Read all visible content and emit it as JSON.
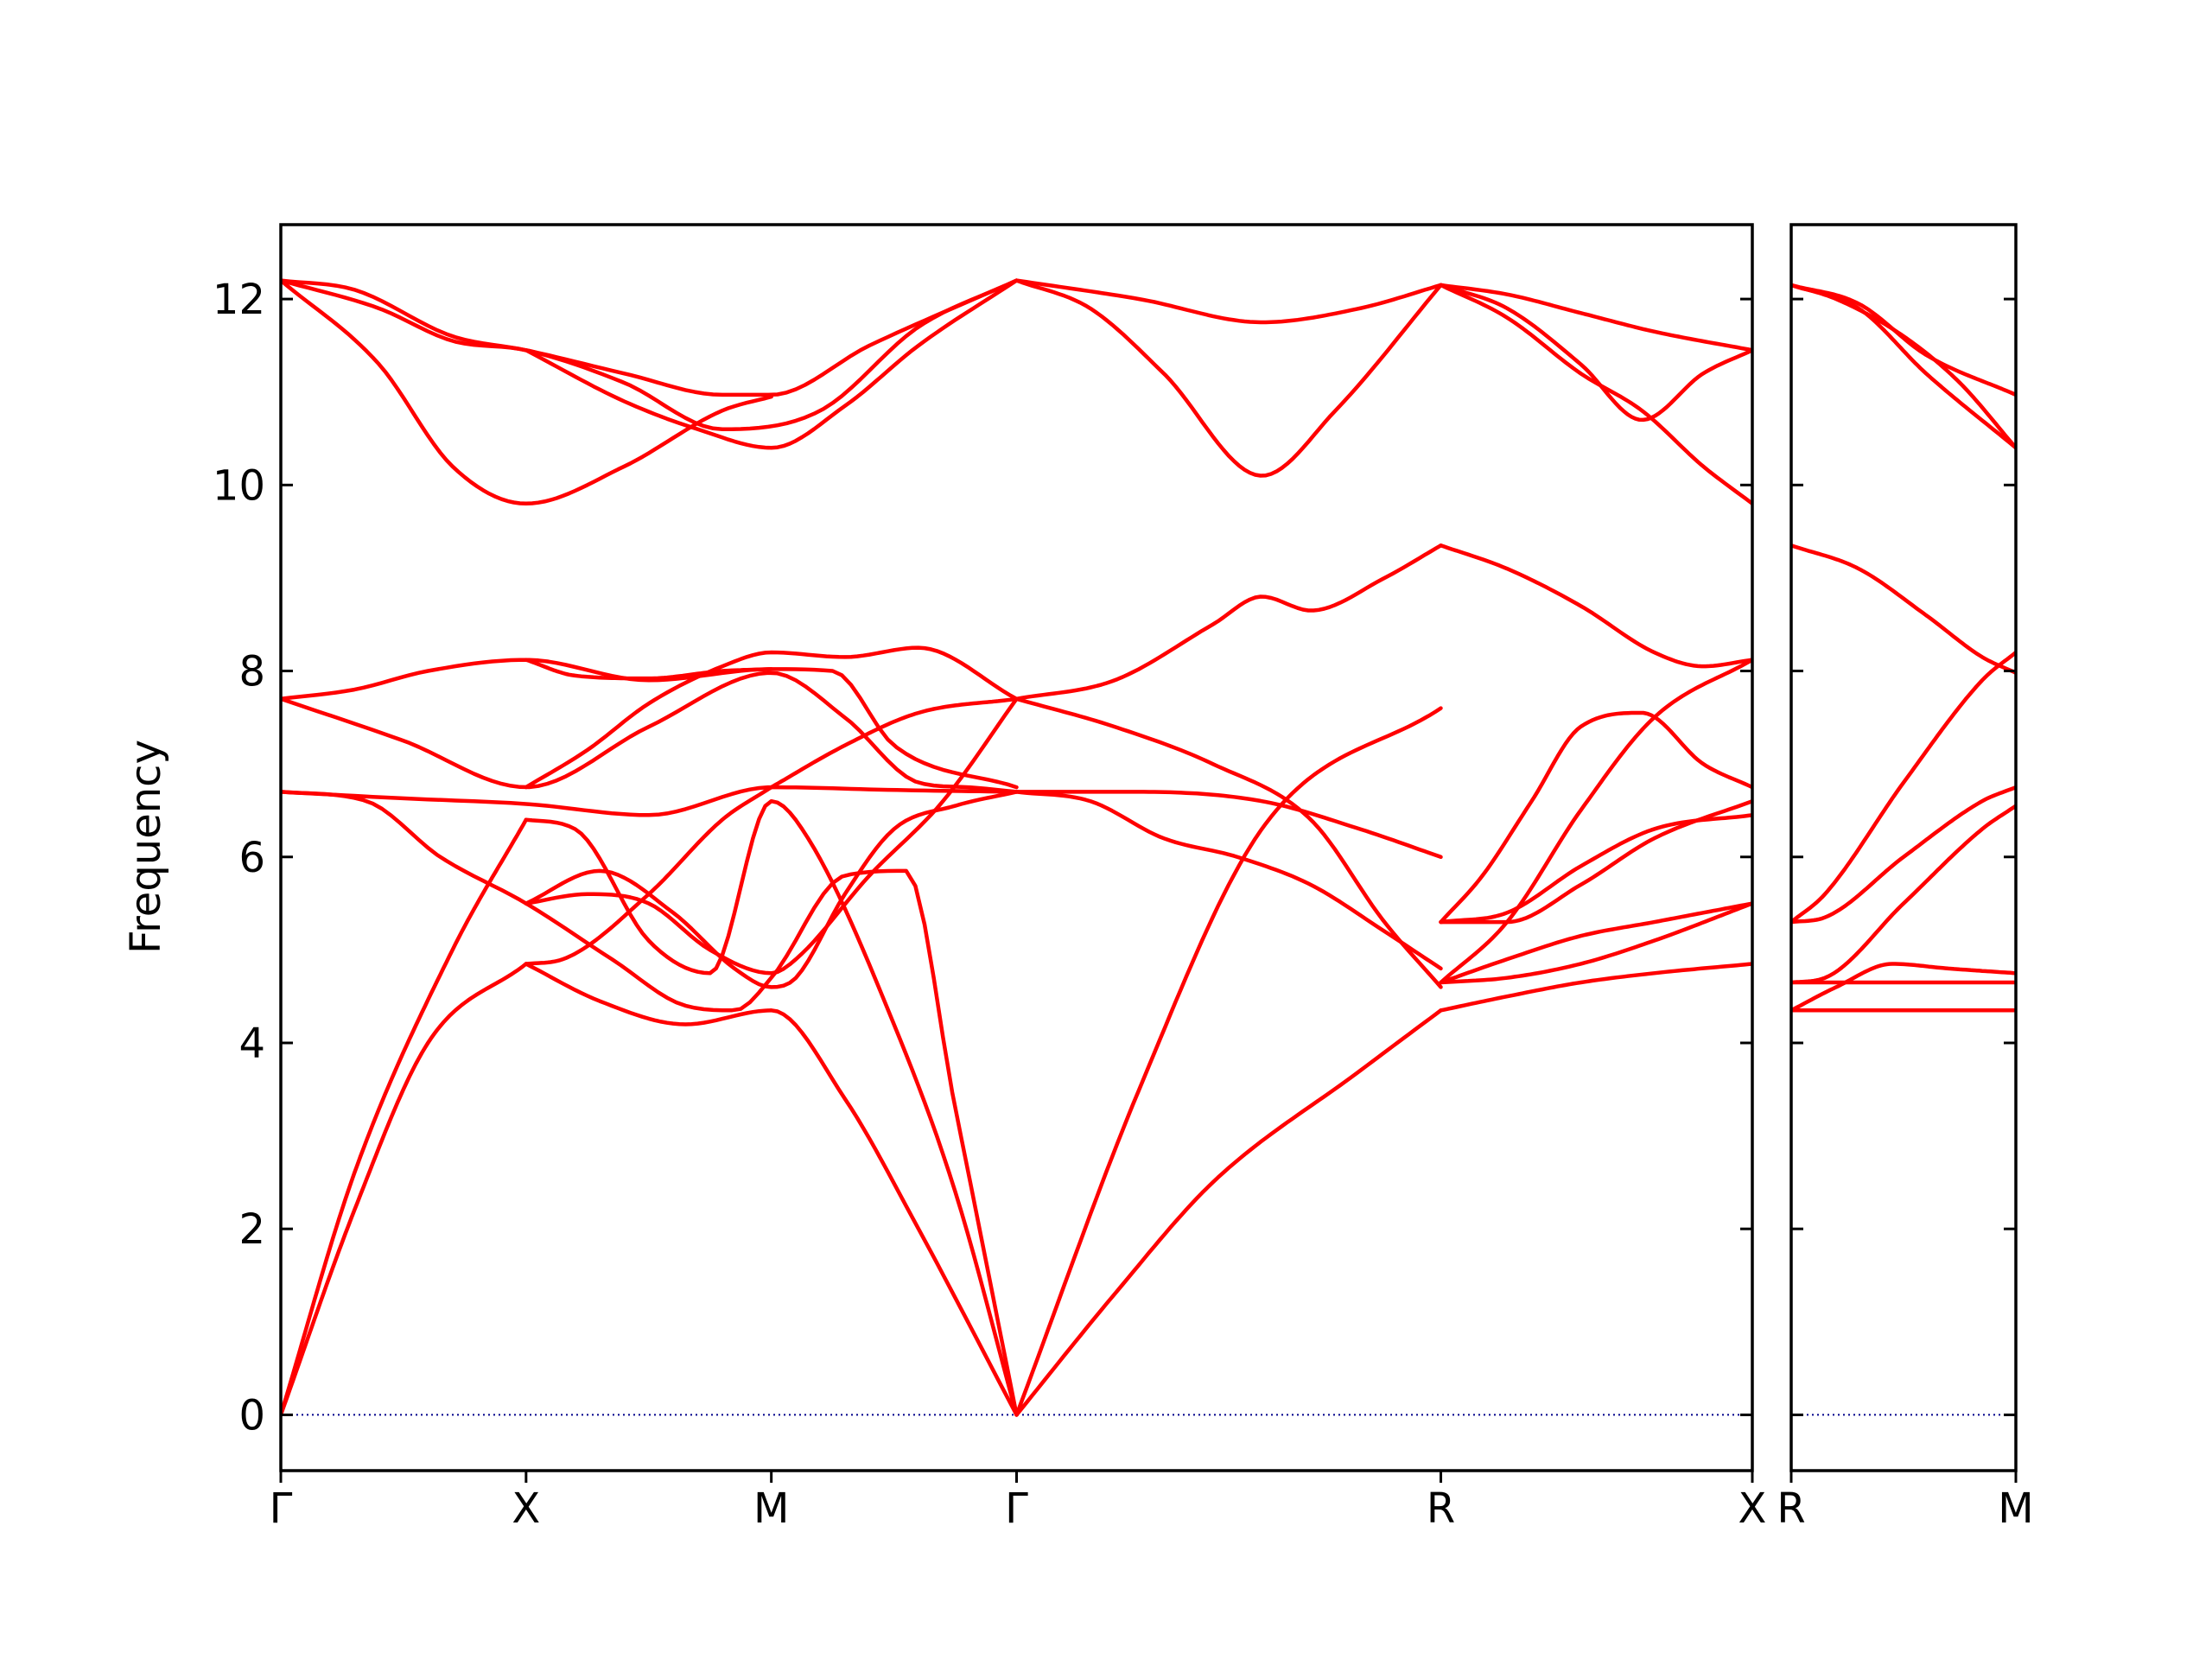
{
  "chart_data": {
    "type": "line",
    "ylabel": "Frequency",
    "ylim": [
      -0.6,
      12.8
    ],
    "yticks": [
      0,
      2,
      4,
      6,
      8,
      10,
      12
    ],
    "band_color": "#ff0000",
    "zero_line_color": "#00008b",
    "panels": [
      {
        "name": "main-panel",
        "xlim": [
          0,
          6
        ],
        "path_labels": [
          {
            "label": "Γ",
            "x": 0
          },
          {
            "label": "X",
            "x": 1
          },
          {
            "label": "M",
            "x": 2
          },
          {
            "label": "Γ",
            "x": 3
          },
          {
            "label": "R",
            "x": 4.73
          },
          {
            "label": "X",
            "x": 6
          }
        ],
        "series": [
          {
            "x": [
              0,
              0.3,
              0.6,
              1
            ],
            "values": [
              0,
              2.2,
              4.0,
              4.85
            ]
          },
          {
            "x": [
              0,
              0.3,
              0.7,
              1
            ],
            "values": [
              0,
              2.6,
              5.0,
              6.4
            ]
          },
          {
            "x": [
              1,
              1.3,
              1.65,
              2,
              2.3,
              2.6,
              3
            ],
            "values": [
              4.85,
              4.45,
              4.2,
              4.35,
              3.4,
              2.0,
              0
            ]
          },
          {
            "x": [
              1,
              1.2,
              1.5,
              1.75,
              2,
              2.15,
              2.5,
              2.75,
              3
            ],
            "values": [
              6.4,
              6.3,
              5.1,
              4.75,
              6.6,
              6.2,
              4.2,
              2.4,
              0
            ]
          },
          {
            "x": [
              0,
              0.35,
              0.65,
              1,
              1.35,
              1.65,
              1.85,
              2,
              2.3,
              2.55,
              2.75,
              3
            ],
            "values": [
              6.7,
              6.6,
              6.0,
              5.5,
              4.9,
              4.4,
              4.35,
              4.7,
              5.8,
              5.85,
              3.3,
              0
            ]
          },
          {
            "x": [
              0,
              0.5,
              1,
              1.5,
              2,
              2.5,
              3
            ],
            "values": [
              6.7,
              6.63,
              6.57,
              6.45,
              6.75,
              6.72,
              6.7
            ]
          },
          {
            "x": [
              1,
              1.15,
              1.5,
              1.8,
              2
            ],
            "values": [
              4.85,
              4.9,
              5.6,
              6.4,
              6.75
            ]
          },
          {
            "x": [
              1,
              1.3,
              1.6,
              1.85,
              2,
              2.1,
              2.3,
              2.5,
              2.75,
              3
            ],
            "values": [
              5.5,
              5.85,
              5.4,
              4.8,
              4.6,
              4.7,
              5.6,
              6.3,
              6.55,
              6.7
            ]
          },
          {
            "x": [
              1,
              1.25,
              1.5,
              1.75,
              2,
              2.1,
              2.4,
              2.7,
              3
            ],
            "values": [
              5.5,
              5.6,
              5.5,
              5.0,
              4.75,
              4.9,
              5.8,
              6.6,
              7.7
            ]
          },
          {
            "x": [
              2,
              2.3,
              2.6,
              3
            ],
            "values": [
              6.75,
              7.2,
              7.55,
              7.7
            ]
          },
          {
            "x": [
              0,
              0.5,
              1,
              1.5,
              2,
              2.3,
              2.6,
              2.8,
              3
            ],
            "values": [
              7.7,
              7.25,
              6.75,
              7.4,
              7.98,
              7.5,
              6.8,
              6.75,
              6.7
            ]
          },
          {
            "x": [
              0,
              0.3,
              0.6,
              1,
              1.5,
              2,
              2.25,
              2.5,
              3
            ],
            "values": [
              7.7,
              7.8,
              8.0,
              8.12,
              7.9,
              8.02,
              8.0,
              7.2,
              6.75
            ]
          },
          {
            "x": [
              1,
              1.25,
              1.5,
              1.8,
              2,
              2.3,
              2.6,
              3
            ],
            "values": [
              6.75,
              7.15,
              7.65,
              8.05,
              8.2,
              8.15,
              8.25,
              7.7
            ]
          },
          {
            "x": [
              1,
              1.2,
              1.5,
              1.8,
              2
            ],
            "values": [
              8.12,
              7.95,
              7.92,
              8.0,
              8.02
            ]
          },
          {
            "x": [
              0,
              0.4,
              0.7,
              1,
              1.4,
              1.8,
              2.2,
              2.6,
              3
            ],
            "values": [
              12.2,
              11.9,
              11.55,
              11.45,
              11.1,
              10.6,
              10.8,
              11.7,
              12.2
            ]
          },
          {
            "x": [
              0,
              0.4,
              0.7,
              1,
              1.4,
              1.8,
              2
            ],
            "values": [
              12.2,
              11.3,
              10.2,
              9.8,
              10.2,
              10.8,
              10.95
            ]
          },
          {
            "x": [
              0,
              0.3,
              0.7,
              1,
              1.4,
              1.8,
              2,
              2.4,
              3
            ],
            "values": [
              12.2,
              12.1,
              11.6,
              11.45,
              11.2,
              10.97,
              10.97,
              11.5,
              12.2
            ]
          },
          {
            "x": [
              1,
              1.4,
              1.7,
              2,
              2.3,
              2.6,
              3
            ],
            "values": [
              11.45,
              10.9,
              10.6,
              10.4,
              10.85,
              11.5,
              12.2
            ]
          },
          {
            "x": [
              3,
              3.5,
              4,
              4.73
            ],
            "values": [
              0,
              3.5,
              6.3,
              7.6
            ]
          },
          {
            "x": [
              3,
              3.4,
              3.8,
              4.4,
              4.73
            ],
            "values": [
              0,
              1.3,
              2.5,
              3.7,
              4.35
            ]
          },
          {
            "x": [
              3,
              3.5,
              4,
              4.4,
              4.73
            ],
            "values": [
              6.7,
              6.7,
              6.6,
              6.3,
              6.0
            ]
          },
          {
            "x": [
              3,
              3.3,
              3.6,
              3.9,
              4.2,
              4.5,
              4.73
            ],
            "values": [
              6.7,
              6.6,
              6.2,
              6.0,
              5.7,
              5.2,
              4.8
            ]
          },
          {
            "x": [
              3,
              3.4,
              3.8,
              4.2,
              4.5,
              4.73
            ],
            "values": [
              7.7,
              7.4,
              7.0,
              6.4,
              5.3,
              4.6
            ]
          },
          {
            "x": [
              3,
              3.4,
              3.8,
              4.0,
              4.2,
              4.5,
              4.73
            ],
            "values": [
              7.7,
              7.9,
              8.5,
              8.8,
              8.65,
              9.0,
              9.35
            ]
          },
          {
            "x": [
              3,
              3.5,
              4,
              4.4,
              4.73
            ],
            "values": [
              12.2,
              12.0,
              11.75,
              11.9,
              12.15
            ]
          },
          {
            "x": [
              3,
              3.3,
              3.6,
              4,
              4.3,
              4.73
            ],
            "values": [
              12.2,
              11.9,
              11.2,
              10.1,
              10.8,
              12.15
            ]
          },
          {
            "x": [
              4.73,
              5.0,
              5.3,
              5.6,
              6
            ],
            "values": [
              4.35,
              4.5,
              4.65,
              4.75,
              4.85
            ]
          },
          {
            "x": [
              4.73,
              5.0,
              5.3,
              5.6,
              6
            ],
            "values": [
              4.65,
              4.7,
              4.85,
              5.1,
              5.5
            ]
          },
          {
            "x": [
              4.73,
              5.0,
              5.3,
              5.6,
              6
            ],
            "values": [
              4.65,
              4.9,
              5.15,
              5.3,
              5.5
            ]
          },
          {
            "x": [
              4.73,
              5.0,
              5.3,
              5.6,
              6
            ],
            "values": [
              5.3,
              5.4,
              5.9,
              6.3,
              6.45
            ]
          },
          {
            "x": [
              4.73,
              5.0,
              5.3,
              5.6,
              6
            ],
            "values": [
              5.3,
              5.3,
              5.7,
              6.2,
              6.6
            ]
          },
          {
            "x": [
              4.73,
              5.0,
              5.3,
              5.6,
              6
            ],
            "values": [
              4.65,
              5.3,
              6.5,
              7.5,
              8.12
            ]
          },
          {
            "x": [
              4.73,
              4.9,
              5.1,
              5.3,
              5.55,
              5.8,
              6
            ],
            "values": [
              5.3,
              5.8,
              6.6,
              7.4,
              7.55,
              7.0,
              6.75
            ]
          },
          {
            "x": [
              4.73,
              5.0,
              5.3,
              5.6,
              5.8,
              6
            ],
            "values": [
              9.35,
              9.1,
              8.7,
              8.2,
              8.05,
              8.12
            ]
          },
          {
            "x": [
              4.73,
              5.0,
              5.3,
              5.6,
              6
            ],
            "values": [
              12.15,
              12.05,
              11.85,
              11.65,
              11.45
            ]
          },
          {
            "x": [
              4.73,
              5.0,
              5.3,
              5.55,
              5.8,
              6
            ],
            "values": [
              12.15,
              11.9,
              11.3,
              10.7,
              11.2,
              11.45
            ]
          },
          {
            "x": [
              4.73,
              5.0,
              5.3,
              5.55,
              5.8,
              6
            ],
            "values": [
              12.15,
              11.8,
              11.2,
              10.8,
              10.2,
              9.8
            ]
          }
        ]
      },
      {
        "name": "side-panel",
        "xlim": [
          0,
          1
        ],
        "path_labels": [
          {
            "label": "R",
            "x": 0
          },
          {
            "label": "M",
            "x": 1
          }
        ],
        "series": [
          {
            "x": [
              0,
              0.5,
              1
            ],
            "values": [
              4.35,
              4.35,
              4.35
            ]
          },
          {
            "x": [
              0,
              0.5,
              1
            ],
            "values": [
              4.65,
              4.65,
              4.65
            ]
          },
          {
            "x": [
              0,
              0.2,
              0.45,
              0.7,
              1
            ],
            "values": [
              4.35,
              4.6,
              4.85,
              4.8,
              4.75
            ]
          },
          {
            "x": [
              0,
              0.15,
              0.5,
              0.85,
              1
            ],
            "values": [
              4.65,
              4.7,
              5.5,
              6.3,
              6.55
            ]
          },
          {
            "x": [
              0,
              0.15,
              0.5,
              0.85,
              1
            ],
            "values": [
              5.3,
              5.35,
              6.0,
              6.6,
              6.75
            ]
          },
          {
            "x": [
              0,
              0.15,
              0.5,
              0.85,
              1
            ],
            "values": [
              5.3,
              5.6,
              6.8,
              7.9,
              8.2
            ]
          },
          {
            "x": [
              0,
              0.3,
              0.6,
              0.85,
              1
            ],
            "values": [
              9.35,
              9.1,
              8.6,
              8.15,
              7.98
            ]
          },
          {
            "x": [
              0,
              0.3,
              0.6,
              1
            ],
            "values": [
              12.15,
              11.95,
              11.4,
              10.97
            ]
          },
          {
            "x": [
              0,
              0.3,
              0.6,
              1
            ],
            "values": [
              12.15,
              11.9,
              11.2,
              10.4
            ]
          },
          {
            "x": [
              0,
              0.2,
              0.5,
              0.75,
              1
            ],
            "values": [
              12.15,
              12.0,
              11.6,
              11.1,
              10.4
            ]
          }
        ]
      }
    ]
  }
}
